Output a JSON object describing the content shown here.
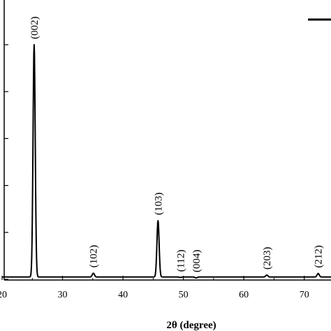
{
  "chart_data": {
    "type": "line",
    "title": "",
    "xlabel": "2θ (degree)",
    "ylabel": "",
    "xlim": [
      20,
      75
    ],
    "ylim": [
      0,
      100
    ],
    "x_ticks": [
      20,
      30,
      40,
      50,
      60,
      70
    ],
    "x_tick_labels": [
      "20",
      "30",
      "40",
      "50",
      "60",
      "70"
    ],
    "grid": false,
    "legend": {
      "position": "top-right",
      "entries": [
        ""
      ]
    },
    "series": [
      {
        "baseline": 1,
        "peaks": [
          {
            "x": 25.3,
            "height": 100,
            "label": "(002)"
          },
          {
            "x": 35.1,
            "height": 2.6,
            "label": "(102)"
          },
          {
            "x": 45.8,
            "height": 25,
            "label": "(103)"
          },
          {
            "x": 49.5,
            "height": 0.8,
            "label": "(112)"
          },
          {
            "x": 52.1,
            "height": 0.6,
            "label": "(004)"
          },
          {
            "x": 63.8,
            "height": 1.8,
            "label": "(203)"
          },
          {
            "x": 72.3,
            "height": 2.5,
            "label": "(212)"
          }
        ]
      }
    ]
  }
}
